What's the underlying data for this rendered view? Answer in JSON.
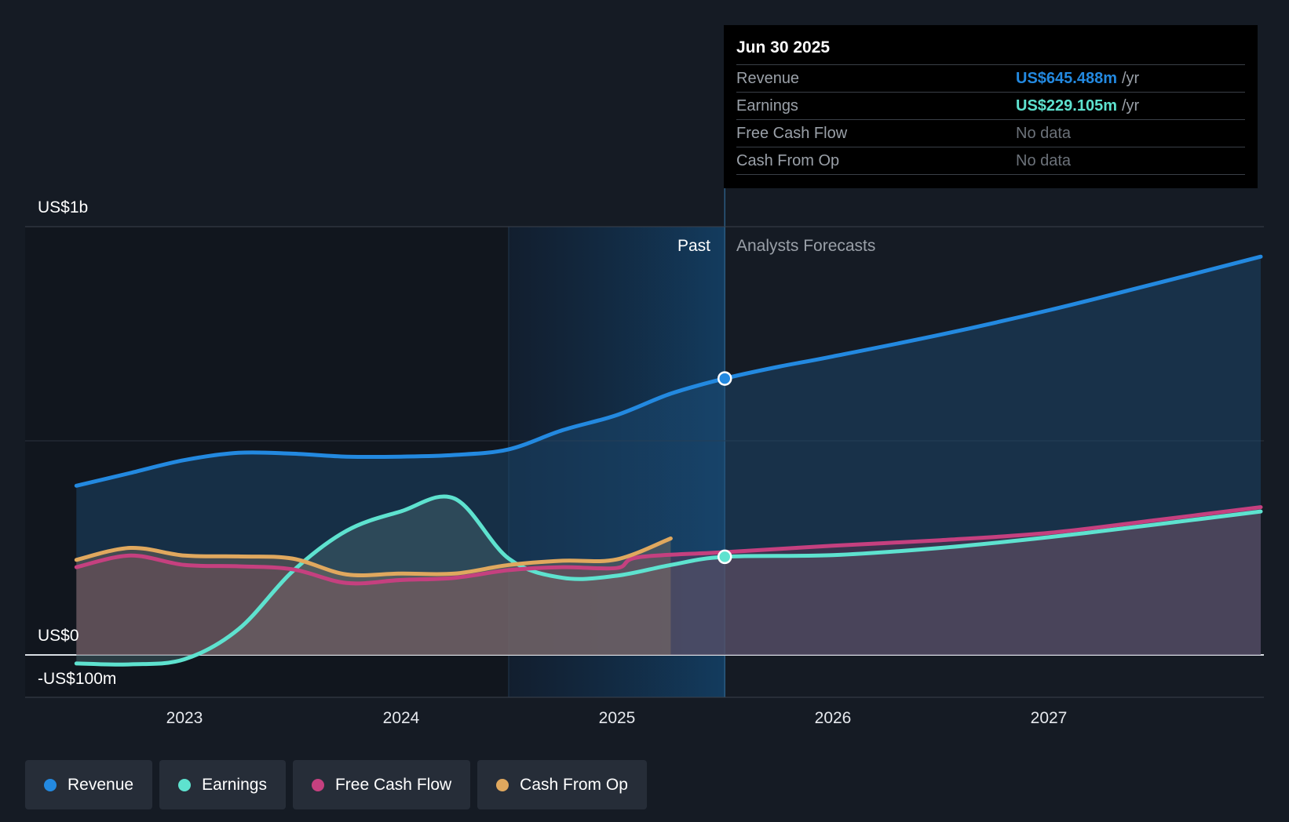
{
  "chart_data": {
    "type": "line",
    "y_axis": {
      "labels": [
        "US$1b",
        "US$0",
        "-US$100m"
      ],
      "min": -100,
      "max": 1000,
      "unit": "US$m"
    },
    "x_axis": {
      "ticks": [
        2023,
        2024,
        2025,
        2026,
        2027
      ],
      "labels": [
        "2023",
        "2024",
        "2025",
        "2026",
        "2027"
      ]
    },
    "past_label": "Past",
    "forecast_label": "Analysts Forecasts",
    "past_end_x": 2025.5,
    "past_highlight_start_x": 2024.5,
    "series": [
      {
        "name": "Revenue",
        "color": "#2389e0",
        "points": [
          [
            2022.5,
            395
          ],
          [
            2022.75,
            425
          ],
          [
            2023.0,
            455
          ],
          [
            2023.25,
            472
          ],
          [
            2023.5,
            470
          ],
          [
            2023.75,
            463
          ],
          [
            2024.0,
            463
          ],
          [
            2024.25,
            467
          ],
          [
            2024.5,
            480
          ],
          [
            2024.75,
            525
          ],
          [
            2025.0,
            560
          ],
          [
            2025.25,
            610
          ],
          [
            2025.5,
            645.488
          ],
          [
            2025.75,
            673
          ],
          [
            2026.0,
            697
          ],
          [
            2026.5,
            748
          ],
          [
            2027.0,
            805
          ],
          [
            2027.5,
            868
          ],
          [
            2027.98,
            930
          ]
        ]
      },
      {
        "name": "Earnings",
        "color": "#5ee2cf",
        "points": [
          [
            2022.5,
            -20
          ],
          [
            2022.75,
            -22
          ],
          [
            2023.0,
            -10
          ],
          [
            2023.25,
            60
          ],
          [
            2023.5,
            195
          ],
          [
            2023.75,
            290
          ],
          [
            2024.0,
            335
          ],
          [
            2024.25,
            365
          ],
          [
            2024.5,
            225
          ],
          [
            2024.75,
            180
          ],
          [
            2025.0,
            185
          ],
          [
            2025.25,
            210
          ],
          [
            2025.5,
            229.105
          ],
          [
            2026.0,
            233
          ],
          [
            2026.5,
            250
          ],
          [
            2027.0,
            275
          ],
          [
            2027.5,
            305
          ],
          [
            2027.98,
            335
          ]
        ]
      },
      {
        "name": "Free Cash Flow",
        "color": "#c5407f",
        "points": [
          [
            2022.5,
            205
          ],
          [
            2022.75,
            232
          ],
          [
            2023.0,
            210
          ],
          [
            2023.25,
            207
          ],
          [
            2023.5,
            200
          ],
          [
            2023.75,
            168
          ],
          [
            2024.0,
            175
          ],
          [
            2024.25,
            180
          ],
          [
            2024.5,
            198
          ],
          [
            2024.75,
            205
          ],
          [
            2025.0,
            203
          ],
          [
            2025.1,
            228
          ],
          [
            2025.5,
            240
          ],
          [
            2026.0,
            255
          ],
          [
            2026.5,
            268
          ],
          [
            2027.0,
            285
          ],
          [
            2027.5,
            315
          ],
          [
            2027.98,
            345
          ]
        ]
      },
      {
        "name": "Cash From Op",
        "color": "#e0a85e",
        "points": [
          [
            2022.5,
            222
          ],
          [
            2022.75,
            250
          ],
          [
            2023.0,
            232
          ],
          [
            2023.25,
            230
          ],
          [
            2023.5,
            225
          ],
          [
            2023.75,
            188
          ],
          [
            2024.0,
            190
          ],
          [
            2024.25,
            190
          ],
          [
            2024.5,
            210
          ],
          [
            2024.75,
            220
          ],
          [
            2025.0,
            223
          ],
          [
            2025.25,
            272
          ]
        ]
      }
    ],
    "tooltip": {
      "date": "Jun 30 2025",
      "rows": [
        {
          "name": "Revenue",
          "value": "US$645.488m",
          "unit": "/yr",
          "color": "#2389e0"
        },
        {
          "name": "Earnings",
          "value": "US$229.105m",
          "unit": "/yr",
          "color": "#5ee2cf"
        },
        {
          "name": "Free Cash Flow",
          "value": "No data"
        },
        {
          "name": "Cash From Op",
          "value": "No data"
        }
      ]
    }
  },
  "legend": [
    {
      "label": "Revenue",
      "color": "#2389e0"
    },
    {
      "label": "Earnings",
      "color": "#5ee2cf"
    },
    {
      "label": "Free Cash Flow",
      "color": "#c5407f"
    },
    {
      "label": "Cash From Op",
      "color": "#e0a85e"
    }
  ]
}
